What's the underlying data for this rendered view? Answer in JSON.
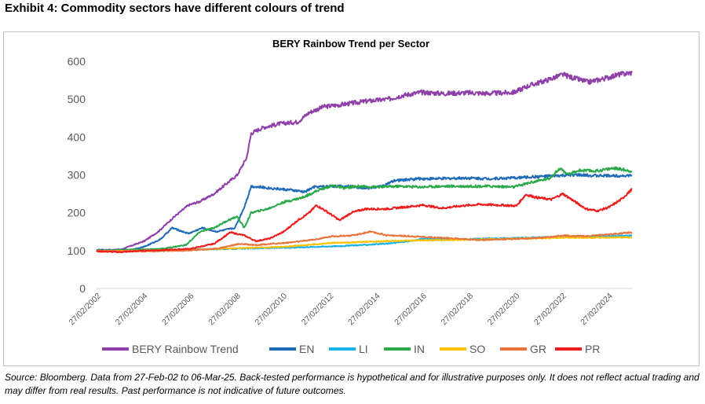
{
  "exhibit_title": "Exhibit 4: Commodity sectors have different colours of trend",
  "footnote": "Source: Bloomberg. Data from 27-Feb-02 to 06-Mar-25. Back-tested performance is hypothetical and for illustrative purposes only. It does not reflect actual trading and may differ from real results. Past performance is not indicative of future outcomes.",
  "chart_data": {
    "type": "line",
    "title": "BERY Rainbow Trend per Sector",
    "xlabel": "",
    "ylabel": "",
    "ylim": [
      0,
      600
    ],
    "yticks": [
      0,
      100,
      200,
      300,
      400,
      500,
      600
    ],
    "xlim": [
      2002.15,
      2025.17
    ],
    "xticks": [
      {
        "label": "27/02/2002",
        "x": 2002.15
      },
      {
        "label": "27/02/2004",
        "x": 2004.15
      },
      {
        "label": "27/02/2006",
        "x": 2006.15
      },
      {
        "label": "27/02/2008",
        "x": 2008.15
      },
      {
        "label": "27/02/2010",
        "x": 2010.15
      },
      {
        "label": "27/02/2012",
        "x": 2012.15
      },
      {
        "label": "27/02/2014",
        "x": 2014.15
      },
      {
        "label": "27/02/2016",
        "x": 2016.15
      },
      {
        "label": "27/02/2018",
        "x": 2018.15
      },
      {
        "label": "27/02/2020",
        "x": 2020.15
      },
      {
        "label": "27/02/2022",
        "x": 2022.15
      },
      {
        "label": "27/02/2024",
        "x": 2024.15
      }
    ],
    "grid": false,
    "legend": "bottom",
    "series": [
      {
        "name": "BERY Rainbow Trend",
        "color": "#8e3fa8",
        "points": [
          [
            2002.15,
            100
          ],
          [
            2003.2,
            103
          ],
          [
            2004.2,
            125
          ],
          [
            2004.8,
            150
          ],
          [
            2005.5,
            190
          ],
          [
            2006.1,
            220
          ],
          [
            2006.6,
            230
          ],
          [
            2007.2,
            250
          ],
          [
            2007.7,
            275
          ],
          [
            2008.2,
            300
          ],
          [
            2008.6,
            345
          ],
          [
            2008.8,
            410
          ],
          [
            2009.3,
            425
          ],
          [
            2010.0,
            435
          ],
          [
            2010.8,
            440
          ],
          [
            2011.3,
            465
          ],
          [
            2011.9,
            480
          ],
          [
            2012.6,
            485
          ],
          [
            2013.2,
            490
          ],
          [
            2013.8,
            495
          ],
          [
            2014.7,
            500
          ],
          [
            2015.3,
            510
          ],
          [
            2016.1,
            518
          ],
          [
            2017.1,
            515
          ],
          [
            2018.1,
            517
          ],
          [
            2019.0,
            515
          ],
          [
            2020.1,
            518
          ],
          [
            2020.7,
            535
          ],
          [
            2021.5,
            550
          ],
          [
            2022.2,
            565
          ],
          [
            2022.7,
            555
          ],
          [
            2023.3,
            545
          ],
          [
            2024.0,
            555
          ],
          [
            2024.6,
            565
          ],
          [
            2025.17,
            570
          ]
        ]
      },
      {
        "name": "EN",
        "color": "#1f6bb8",
        "points": [
          [
            2002.15,
            102
          ],
          [
            2003.6,
            102
          ],
          [
            2004.2,
            110
          ],
          [
            2004.9,
            130
          ],
          [
            2005.4,
            160
          ],
          [
            2006.1,
            145
          ],
          [
            2006.7,
            160
          ],
          [
            2007.3,
            150
          ],
          [
            2008.1,
            160
          ],
          [
            2008.5,
            215
          ],
          [
            2008.8,
            270
          ],
          [
            2009.6,
            265
          ],
          [
            2010.5,
            260
          ],
          [
            2011.1,
            255
          ],
          [
            2011.5,
            268
          ],
          [
            2012.2,
            270
          ],
          [
            2013.0,
            270
          ],
          [
            2013.8,
            265
          ],
          [
            2014.4,
            270
          ],
          [
            2015.0,
            285
          ],
          [
            2016.0,
            290
          ],
          [
            2017.0,
            290
          ],
          [
            2018.0,
            292
          ],
          [
            2019.0,
            290
          ],
          [
            2020.1,
            292
          ],
          [
            2021.0,
            295
          ],
          [
            2022.1,
            298
          ],
          [
            2022.7,
            300
          ],
          [
            2023.5,
            298
          ],
          [
            2025.17,
            298
          ]
        ]
      },
      {
        "name": "LI",
        "color": "#19b2e8",
        "points": [
          [
            2002.15,
            98
          ],
          [
            2004.2,
            100
          ],
          [
            2006.0,
            103
          ],
          [
            2007.5,
            104
          ],
          [
            2009.0,
            106
          ],
          [
            2010.5,
            108
          ],
          [
            2011.5,
            110
          ],
          [
            2012.6,
            112
          ],
          [
            2013.6,
            115
          ],
          [
            2014.6,
            118
          ],
          [
            2015.6,
            125
          ],
          [
            2016.3,
            132
          ],
          [
            2017.2,
            130
          ],
          [
            2018.1,
            130
          ],
          [
            2019.0,
            132
          ],
          [
            2020.1,
            133
          ],
          [
            2021.2,
            135
          ],
          [
            2022.1,
            136
          ],
          [
            2023.1,
            137
          ],
          [
            2024.1,
            138
          ],
          [
            2025.17,
            140
          ]
        ]
      },
      {
        "name": "IN",
        "color": "#2ba84a",
        "points": [
          [
            2002.15,
            100
          ],
          [
            2004.2,
            103
          ],
          [
            2005.0,
            105
          ],
          [
            2006.0,
            115
          ],
          [
            2006.6,
            150
          ],
          [
            2007.2,
            160
          ],
          [
            2007.8,
            180
          ],
          [
            2008.2,
            190
          ],
          [
            2008.5,
            160
          ],
          [
            2008.8,
            200
          ],
          [
            2009.5,
            210
          ],
          [
            2010.2,
            228
          ],
          [
            2011.0,
            240
          ],
          [
            2011.7,
            260
          ],
          [
            2012.3,
            272
          ],
          [
            2012.8,
            265
          ],
          [
            2013.4,
            270
          ],
          [
            2014.2,
            268
          ],
          [
            2015.1,
            270
          ],
          [
            2016.1,
            268
          ],
          [
            2017.0,
            270
          ],
          [
            2018.1,
            270
          ],
          [
            2019.0,
            270
          ],
          [
            2020.1,
            268
          ],
          [
            2020.8,
            280
          ],
          [
            2021.6,
            290
          ],
          [
            2022.1,
            318
          ],
          [
            2022.4,
            300
          ],
          [
            2022.9,
            312
          ],
          [
            2023.6,
            310
          ],
          [
            2024.4,
            318
          ],
          [
            2025.17,
            310
          ]
        ]
      },
      {
        "name": "SO",
        "color": "#ffc000",
        "points": [
          [
            2002.15,
            98
          ],
          [
            2004.2,
            100
          ],
          [
            2006.2,
            102
          ],
          [
            2008.0,
            106
          ],
          [
            2009.2,
            108
          ],
          [
            2010.2,
            110
          ],
          [
            2011.2,
            115
          ],
          [
            2012.2,
            120
          ],
          [
            2013.2,
            122
          ],
          [
            2014.6,
            125
          ],
          [
            2016.0,
            127
          ],
          [
            2017.5,
            128
          ],
          [
            2019.0,
            130
          ],
          [
            2020.5,
            132
          ],
          [
            2022.0,
            134
          ],
          [
            2023.5,
            134
          ],
          [
            2025.17,
            135
          ]
        ]
      },
      {
        "name": "GR",
        "color": "#e8743b",
        "points": [
          [
            2002.15,
            100
          ],
          [
            2004.2,
            98
          ],
          [
            2006.0,
            100
          ],
          [
            2007.3,
            105
          ],
          [
            2008.3,
            118
          ],
          [
            2009.0,
            115
          ],
          [
            2010.2,
            120
          ],
          [
            2011.0,
            125
          ],
          [
            2011.6,
            130
          ],
          [
            2012.3,
            138
          ],
          [
            2013.2,
            140
          ],
          [
            2013.9,
            150
          ],
          [
            2014.7,
            140
          ],
          [
            2015.7,
            138
          ],
          [
            2016.6,
            135
          ],
          [
            2017.6,
            132
          ],
          [
            2018.6,
            128
          ],
          [
            2019.6,
            130
          ],
          [
            2020.6,
            132
          ],
          [
            2021.6,
            135
          ],
          [
            2022.2,
            140
          ],
          [
            2023.2,
            138
          ],
          [
            2024.0,
            142
          ],
          [
            2025.17,
            148
          ]
        ]
      },
      {
        "name": "PR",
        "color": "#ee1c1c",
        "points": [
          [
            2002.15,
            98
          ],
          [
            2003.2,
            96
          ],
          [
            2004.2,
            100
          ],
          [
            2005.2,
            102
          ],
          [
            2006.2,
            105
          ],
          [
            2007.2,
            118
          ],
          [
            2007.9,
            148
          ],
          [
            2008.5,
            140
          ],
          [
            2009.0,
            125
          ],
          [
            2009.6,
            132
          ],
          [
            2010.2,
            150
          ],
          [
            2010.8,
            180
          ],
          [
            2011.3,
            200
          ],
          [
            2011.6,
            220
          ],
          [
            2012.0,
            205
          ],
          [
            2012.6,
            180
          ],
          [
            2013.1,
            200
          ],
          [
            2013.7,
            210
          ],
          [
            2014.6,
            210
          ],
          [
            2015.4,
            215
          ],
          [
            2016.2,
            220
          ],
          [
            2017.0,
            212
          ],
          [
            2017.8,
            218
          ],
          [
            2018.6,
            222
          ],
          [
            2019.6,
            220
          ],
          [
            2020.2,
            218
          ],
          [
            2020.6,
            248
          ],
          [
            2021.1,
            240
          ],
          [
            2021.7,
            235
          ],
          [
            2022.2,
            250
          ],
          [
            2022.7,
            230
          ],
          [
            2023.2,
            210
          ],
          [
            2023.7,
            205
          ],
          [
            2024.2,
            215
          ],
          [
            2024.7,
            235
          ],
          [
            2025.17,
            262
          ]
        ]
      }
    ]
  }
}
